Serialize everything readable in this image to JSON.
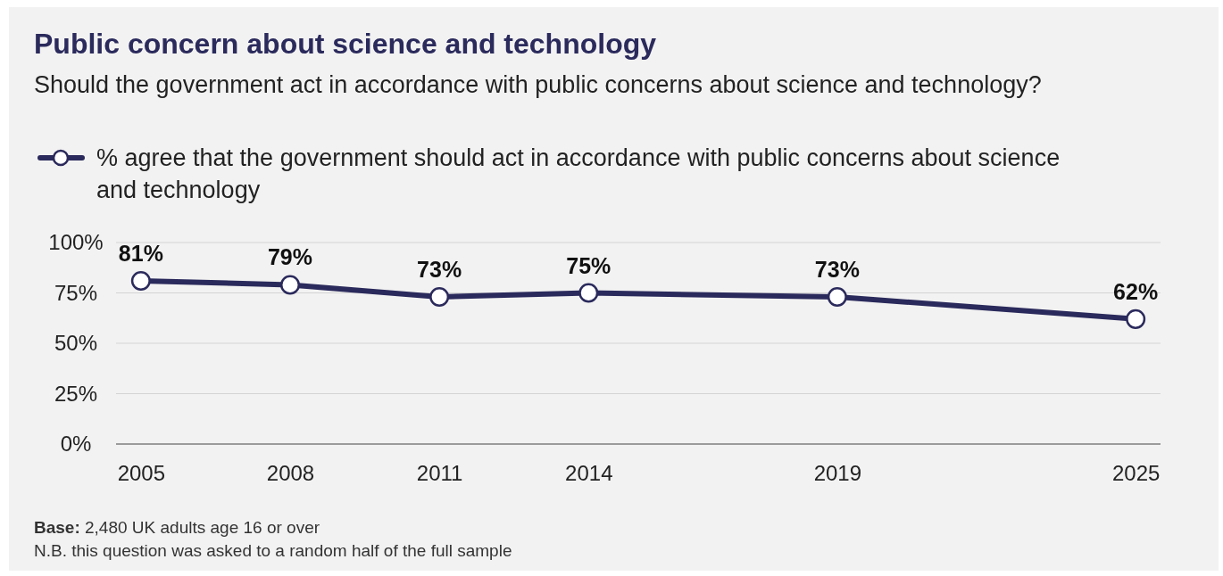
{
  "chart_data": {
    "type": "line",
    "title": "Public concern about science and technology",
    "subtitle": "Should the government act in accordance with public concerns about science and technology?",
    "x": [
      2005,
      2008,
      2011,
      2014,
      2019,
      2025
    ],
    "series": [
      {
        "name": "% agree that the government should act in accordance with public concerns about science and technology",
        "color": "#2b2a5c",
        "values": [
          81,
          79,
          73,
          75,
          73,
          62
        ],
        "value_labels": [
          "81%",
          "79%",
          "73%",
          "75%",
          "73%",
          "62%"
        ]
      }
    ],
    "xlim": [
      2004.5,
      2025.5
    ],
    "xticks": [
      2005,
      2008,
      2011,
      2014,
      2019,
      2025
    ],
    "ylim": [
      0,
      100
    ],
    "yticks": [
      {
        "value": 0,
        "label": "0%"
      },
      {
        "value": 25,
        "label": "25%"
      },
      {
        "value": 50,
        "label": "50%"
      },
      {
        "value": 75,
        "label": "75%"
      },
      {
        "value": 100,
        "label": "100%"
      }
    ],
    "grid": "y",
    "legend": "top left",
    "marker": "circle",
    "line_style": "solid",
    "annotations": [
      "Base: 2,480 UK adults age 16 or over",
      "N.B. this question was asked to a random half of the full sample"
    ]
  }
}
